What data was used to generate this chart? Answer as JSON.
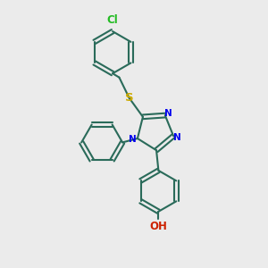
{
  "bg_color": "#ebebeb",
  "bond_color": "#2a6b5a",
  "n_color": "#0000ee",
  "s_color": "#ccaa00",
  "cl_color": "#22bb22",
  "o_color": "#cc2200",
  "line_width": 1.5,
  "figsize": [
    3.0,
    3.0
  ],
  "dpi": 100,
  "xlim": [
    0,
    10
  ],
  "ylim": [
    0,
    10
  ]
}
